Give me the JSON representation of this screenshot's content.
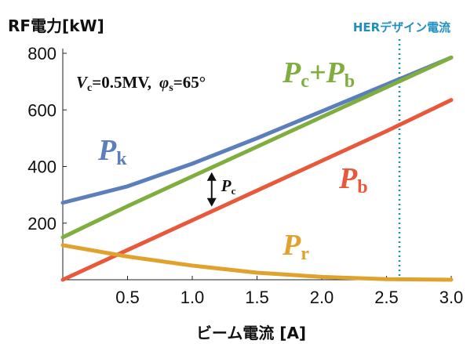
{
  "chart_data": {
    "type": "line",
    "title": "",
    "ylabel": "RF電力[kW]",
    "xlabel": "ビーム電流 [A]",
    "xlim": [
      0,
      3.0
    ],
    "ylim": [
      0,
      800
    ],
    "xticks": [
      0.5,
      1.0,
      1.5,
      2.0,
      2.5,
      3.0
    ],
    "xtick_labels": [
      "0.5",
      "1.0",
      "1.5",
      "2.0",
      "2.5",
      "3.0"
    ],
    "yticks": [
      200,
      400,
      600,
      800
    ],
    "ytick_labels": [
      "200",
      "400",
      "600",
      "800"
    ],
    "x": [
      0,
      0.5,
      1.0,
      1.5,
      2.0,
      2.5,
      3.0
    ],
    "series": [
      {
        "key": "Pk",
        "name": "P",
        "sub": "k",
        "color": "#5b7fbd",
        "values": [
          272,
          330,
          410,
          500,
          595,
          690,
          785
        ]
      },
      {
        "key": "PcPb",
        "name": "P",
        "sub": "c",
        "name2": "+P",
        "sub2": "b",
        "color": "#7fae3f",
        "values": [
          150,
          260,
          365,
          470,
          575,
          680,
          785
        ]
      },
      {
        "key": "Pb",
        "name": "P",
        "sub": "b",
        "color": "#e8583a",
        "values": [
          0,
          105,
          210,
          315,
          420,
          525,
          635
        ]
      },
      {
        "key": "Pr",
        "name": "P",
        "sub": "r",
        "color": "#e0a22c",
        "values": [
          122,
          82,
          50,
          25,
          10,
          2,
          0
        ]
      }
    ],
    "annotations": {
      "condition_v": "V",
      "condition_v_sub": "c",
      "condition_v_val": "=0.5MV,",
      "condition_phi": "φ",
      "condition_phi_sub": "s",
      "condition_phi_val": "=65°",
      "arrow_label": "P",
      "arrow_label_sub": "c",
      "arrow_x": 1.15,
      "marker_label": "HERデザイン電流",
      "marker_x": 2.6,
      "marker_color": "#1f8fc0"
    },
    "grid": false,
    "legend": "inline-labels"
  }
}
